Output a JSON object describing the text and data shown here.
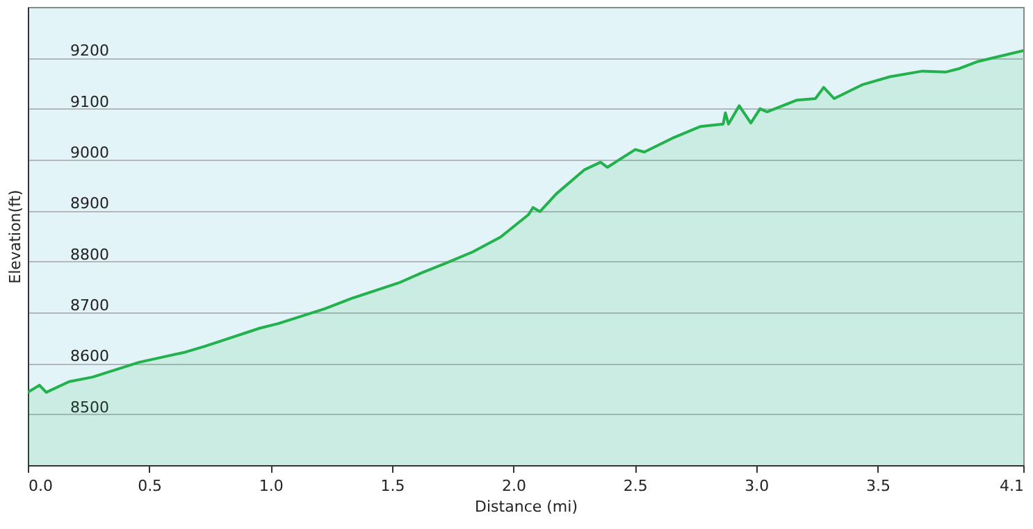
{
  "chart_data": {
    "type": "area",
    "xlabel": "Distance  (mi)",
    "ylabel": "Elevation(ft)",
    "x": [
      0,
      0.048,
      0.076,
      0.17,
      0.267,
      0.458,
      0.649,
      0.726,
      0.783,
      0.955,
      1.031,
      1.222,
      1.337,
      1.528,
      1.623,
      1.718,
      1.833,
      1.947,
      2.062,
      2.081,
      2.109,
      2.177,
      2.292,
      2.359,
      2.387,
      2.502,
      2.539,
      2.654,
      2.769,
      2.864,
      2.873,
      2.886,
      2.93,
      2.978,
      3.016,
      3.045,
      3.168,
      3.244,
      3.278,
      3.321,
      3.436,
      3.551,
      3.685,
      3.78,
      3.837,
      3.914,
      4.1
    ],
    "series": [
      {
        "color": "#22b14c",
        "values": [
          8543,
          8557,
          8543,
          8564,
          8573,
          8602,
          8622,
          8633,
          8642,
          8669,
          8678,
          8707,
          8728,
          8758,
          8778,
          8796,
          8819,
          8848,
          8892,
          8906,
          8898,
          8933,
          8980,
          8995,
          8985,
          9020,
          9015,
          9042,
          9065,
          9070,
          9092,
          9070,
          9106,
          9072,
          9100,
          9094,
          9117,
          9120,
          9142,
          9120,
          9147,
          9163,
          9174,
          9172,
          9179,
          9193,
          9214
        ]
      }
    ],
    "xlim": [
      0,
      4.1
    ],
    "ylim": [
      8400,
      9300
    ],
    "xticks": [
      {
        "value": 0,
        "label": "0.0"
      },
      {
        "value": 0.5,
        "label": "0.5"
      },
      {
        "value": 1,
        "label": "1.0"
      },
      {
        "value": 1.5,
        "label": "1.5"
      },
      {
        "value": 2,
        "label": "2.0"
      },
      {
        "value": 2.5,
        "label": "2.5"
      },
      {
        "value": 3,
        "label": "3.0"
      },
      {
        "value": 3.5,
        "label": "3.5"
      },
      {
        "value": 4.1,
        "label": "4.1"
      }
    ],
    "yticks": [
      {
        "value": 8400,
        "label": null
      },
      8500,
      8600,
      8700,
      8800,
      8900,
      9000,
      9100,
      9200
    ],
    "grid": "y",
    "marker": "none",
    "line_style": "solid"
  }
}
